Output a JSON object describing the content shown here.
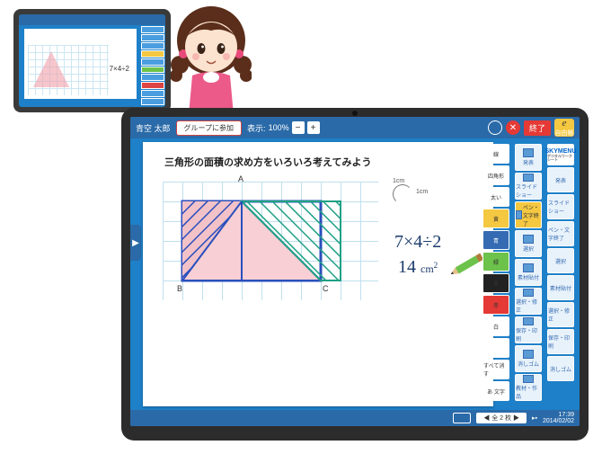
{
  "thumb": {
    "equation": "7×4÷2"
  },
  "header": {
    "user_name": "青空 太郎",
    "group_button": "グループに参加",
    "zoom_label": "表示:",
    "zoom_value": "100%",
    "end_label": "終了",
    "e_label": "自由帳"
  },
  "canvas": {
    "title": "三角形の面積の求め方をいろいろ考えてみよう",
    "dim_h": "1cm",
    "dim_v": "1cm",
    "equation": "7×4÷2",
    "answer_value": "14",
    "answer_unit": "cm",
    "answer_exp": "2",
    "labels": {
      "A": "A",
      "B": "B",
      "C": "C"
    },
    "grid": {
      "cell": 22,
      "cols": 10,
      "rows": 6,
      "color": "#bfe0ee"
    },
    "triangle": {
      "fill_left": "#f2c2c8",
      "fill_right": "#f2c2c8",
      "outline_left": "#2a4fbd",
      "outline_right": "#1fa085",
      "hatch_left": "#2a4fbd",
      "hatch_right": "#1fa085",
      "rect_color": "#2a4fbd"
    }
  },
  "tools_col1": [
    {
      "cls": "white",
      "label": "線",
      "kind": "line-icon"
    },
    {
      "cls": "white",
      "label": "四角形",
      "kind": "rect-icon"
    },
    {
      "cls": "white",
      "label": "太い",
      "kind": "thick-icon"
    },
    {
      "cls": "yellow",
      "label": "黄",
      "kind": "color-swatch"
    },
    {
      "cls": "blue",
      "label": "青",
      "kind": "color-swatch"
    },
    {
      "cls": "green",
      "label": "緑",
      "kind": "color-swatch"
    },
    {
      "cls": "black",
      "label": "黒",
      "kind": "color-swatch"
    },
    {
      "cls": "red",
      "label": "赤",
      "kind": "color-swatch"
    },
    {
      "cls": "white",
      "label": "白",
      "kind": "color-swatch"
    },
    {
      "cls": "white",
      "label": "",
      "kind": "more-icon"
    },
    {
      "cls": "white",
      "label": "すべて消す",
      "kind": "clear-all"
    },
    {
      "cls": "white",
      "label": "あ 文字",
      "kind": "text-icon"
    }
  ],
  "tools_col2": [
    {
      "cls": "light",
      "label": "発表",
      "kind": "present-icon"
    },
    {
      "cls": "light",
      "label": "スライドショー",
      "kind": "slideshow-icon"
    },
    {
      "cls": "yellow",
      "label": "ペン・文字終了",
      "kind": "pen-end"
    },
    {
      "cls": "light",
      "label": "選択",
      "kind": "select-icon"
    },
    {
      "cls": "light",
      "label": "素材貼付",
      "kind": "paste-icon"
    },
    {
      "cls": "light",
      "label": "選択・修正",
      "kind": "edit-icon"
    },
    {
      "cls": "light",
      "label": "保存・印刷",
      "kind": "save-icon"
    },
    {
      "cls": "light",
      "label": "消しゴム",
      "kind": "eraser-icon"
    },
    {
      "cls": "light",
      "label": "教材・作品",
      "kind": "material-icon"
    }
  ],
  "brand": {
    "name": "SKYMENU",
    "sub": "デジタルワークシート"
  },
  "bottom": {
    "page": "全 2 枚",
    "time": "17:39",
    "date": "2014/02/02"
  }
}
